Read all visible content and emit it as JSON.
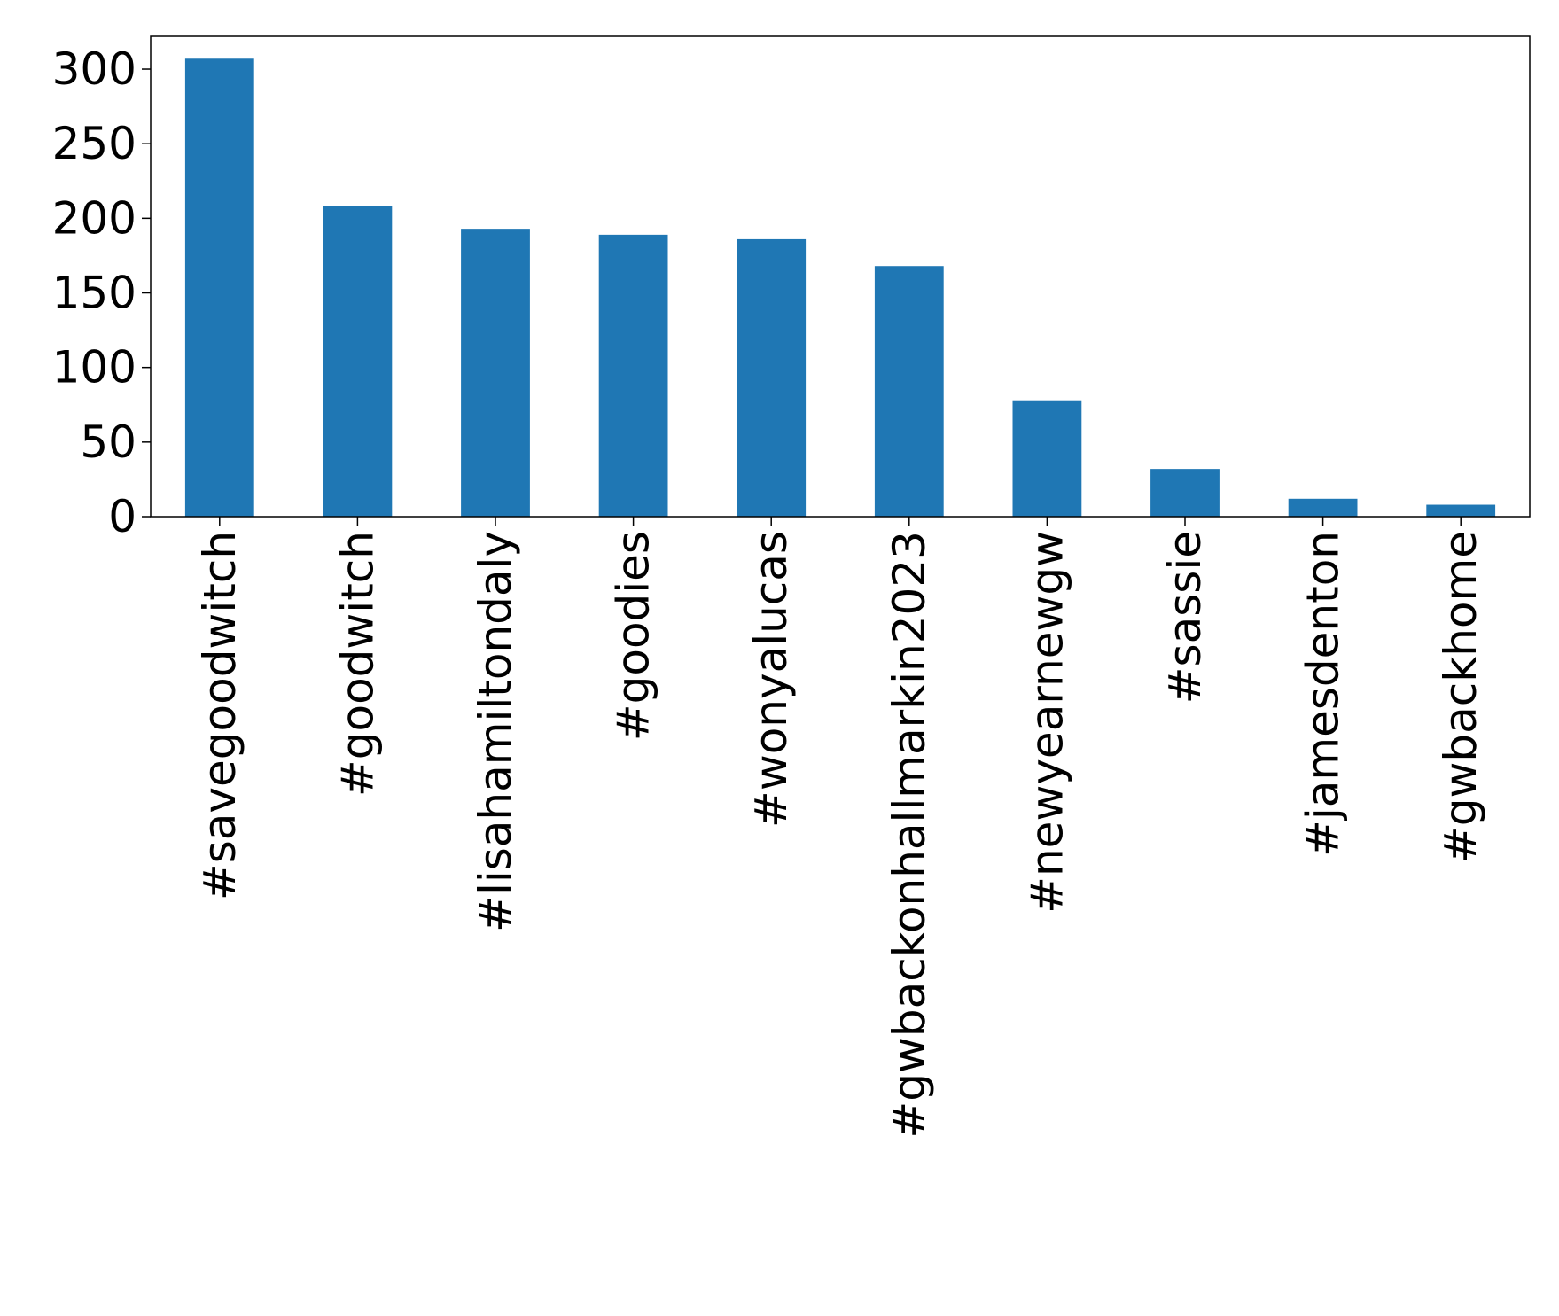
{
  "chart_data": {
    "type": "bar",
    "title": "",
    "xlabel": "",
    "ylabel": "",
    "categories": [
      "#savegoodwitch",
      "#goodwitch",
      "#lisahamiltondaly",
      "#goodies",
      "#wonyalucas",
      "#gwbackonhallmarkin2023",
      "#newyearnewgw",
      "#sassie",
      "#jamesdenton",
      "#gwbackhome"
    ],
    "values": [
      307,
      208,
      193,
      189,
      186,
      168,
      78,
      32,
      12,
      8
    ],
    "ylim": [
      0,
      322
    ],
    "yticks": [
      0,
      50,
      100,
      150,
      200,
      250,
      300
    ],
    "grid": false,
    "legend": "none",
    "bar_color": "#1f77b4"
  }
}
